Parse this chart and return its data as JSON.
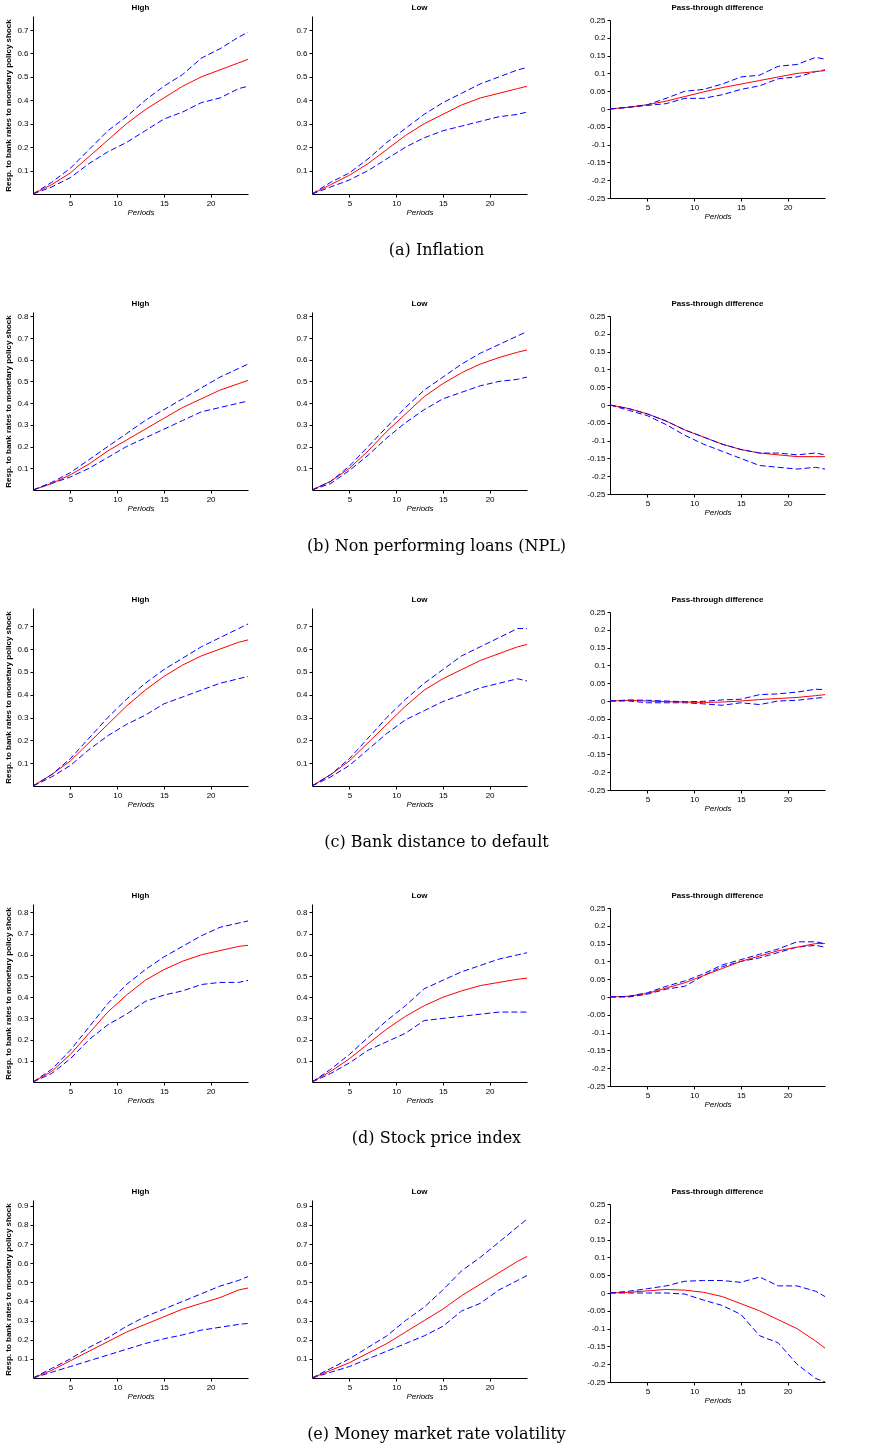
{
  "chart_data": [
    {
      "type": "line",
      "title": "High",
      "xlabel": "Periods",
      "ylabel": "Resp. to bank rates to monetary policy shock",
      "x": [
        1,
        3,
        5,
        7,
        9,
        11,
        13,
        15,
        17,
        19,
        21,
        23,
        24
      ],
      "xlim": [
        1,
        24
      ],
      "xticks": [
        5,
        10,
        15,
        20
      ],
      "ylim": [
        0,
        0.76
      ],
      "yticks": [
        0.1,
        0.2,
        0.3,
        0.4,
        0.5,
        0.6,
        0.7
      ],
      "series": [
        {
          "color": "#0000ff",
          "line_style": "dashed",
          "values": [
            0,
            0.03,
            0.07,
            0.13,
            0.18,
            0.22,
            0.27,
            0.32,
            0.35,
            0.39,
            0.41,
            0.45,
            0.46
          ]
        },
        {
          "color": "#ff0000",
          "line_style": "solid",
          "values": [
            0,
            0.04,
            0.09,
            0.16,
            0.23,
            0.3,
            0.36,
            0.41,
            0.46,
            0.5,
            0.53,
            0.56,
            0.575
          ]
        },
        {
          "color": "#0000ff",
          "line_style": "dashed",
          "values": [
            0,
            0.05,
            0.11,
            0.19,
            0.27,
            0.33,
            0.4,
            0.46,
            0.51,
            0.58,
            0.62,
            0.67,
            0.69
          ]
        }
      ]
    },
    {
      "type": "line",
      "title": "Low",
      "xlabel": "Periods",
      "x": [
        1,
        3,
        5,
        7,
        9,
        11,
        13,
        15,
        17,
        19,
        21,
        23,
        24
      ],
      "xlim": [
        1,
        24
      ],
      "xticks": [
        5,
        10,
        15,
        20
      ],
      "ylim": [
        0,
        0.76
      ],
      "yticks": [
        0.1,
        0.2,
        0.3,
        0.4,
        0.5,
        0.6,
        0.7
      ],
      "annotations": [
        "(a) Inflation"
      ],
      "series": [
        {
          "color": "#0000ff",
          "line_style": "dashed",
          "values": [
            0,
            0.03,
            0.06,
            0.1,
            0.15,
            0.2,
            0.24,
            0.27,
            0.29,
            0.31,
            0.33,
            0.34,
            0.35
          ]
        },
        {
          "color": "#ff0000",
          "line_style": "solid",
          "values": [
            0,
            0.04,
            0.08,
            0.13,
            0.19,
            0.25,
            0.3,
            0.34,
            0.38,
            0.41,
            0.43,
            0.45,
            0.46
          ]
        },
        {
          "color": "#0000ff",
          "line_style": "dashed",
          "values": [
            0,
            0.05,
            0.09,
            0.15,
            0.22,
            0.28,
            0.34,
            0.39,
            0.43,
            0.47,
            0.5,
            0.53,
            0.54
          ]
        }
      ]
    },
    {
      "type": "line",
      "title": "Pass-through difference",
      "xlabel": "Periods",
      "x": [
        1,
        3,
        5,
        7,
        9,
        11,
        13,
        15,
        17,
        19,
        21,
        23,
        24
      ],
      "xlim": [
        1,
        24
      ],
      "xticks": [
        5,
        10,
        15,
        20
      ],
      "ylim": [
        -0.25,
        0.25
      ],
      "yticks": [
        -0.25,
        -0.2,
        -0.15,
        -0.1,
        -0.05,
        0,
        0.05,
        0.1,
        0.15,
        0.2,
        0.25
      ],
      "series": [
        {
          "color": "#0000ff",
          "line_style": "dashed",
          "values": [
            0,
            0.005,
            0.01,
            0.015,
            0.03,
            0.03,
            0.04,
            0.055,
            0.065,
            0.085,
            0.09,
            0.105,
            0.11
          ]
        },
        {
          "color": "#ff0000",
          "line_style": "solid",
          "values": [
            0,
            0.005,
            0.012,
            0.022,
            0.035,
            0.048,
            0.06,
            0.07,
            0.08,
            0.09,
            0.1,
            0.105,
            0.108
          ]
        },
        {
          "color": "#0000ff",
          "line_style": "dashed",
          "values": [
            0,
            0.005,
            0.012,
            0.03,
            0.05,
            0.055,
            0.07,
            0.09,
            0.095,
            0.12,
            0.125,
            0.145,
            0.14
          ]
        }
      ]
    },
    {
      "type": "line",
      "title": "High",
      "xlabel": "Periods",
      "ylabel": "Resp. to bank rates to monetary policy shock",
      "x": [
        1,
        3,
        5,
        7,
        9,
        11,
        13,
        15,
        17,
        19,
        21,
        23,
        24
      ],
      "xlim": [
        1,
        24
      ],
      "xticks": [
        5,
        10,
        15,
        20
      ],
      "ylim": [
        0,
        0.82
      ],
      "yticks": [
        0.1,
        0.2,
        0.3,
        0.4,
        0.5,
        0.6,
        0.7,
        0.8
      ],
      "series": [
        {
          "color": "#0000ff",
          "line_style": "dashed",
          "values": [
            0,
            0.03,
            0.06,
            0.1,
            0.15,
            0.2,
            0.24,
            0.28,
            0.32,
            0.36,
            0.38,
            0.4,
            0.41
          ]
        },
        {
          "color": "#ff0000",
          "line_style": "solid",
          "values": [
            0,
            0.03,
            0.07,
            0.12,
            0.18,
            0.23,
            0.28,
            0.33,
            0.38,
            0.42,
            0.46,
            0.49,
            0.505
          ]
        },
        {
          "color": "#0000ff",
          "line_style": "dashed",
          "values": [
            0,
            0.035,
            0.08,
            0.14,
            0.2,
            0.26,
            0.32,
            0.37,
            0.42,
            0.47,
            0.52,
            0.56,
            0.58
          ]
        }
      ]
    },
    {
      "type": "line",
      "title": "Low",
      "xlabel": "Periods",
      "x": [
        1,
        3,
        5,
        7,
        9,
        11,
        13,
        15,
        17,
        19,
        21,
        23,
        24
      ],
      "xlim": [
        1,
        24
      ],
      "xticks": [
        5,
        10,
        15,
        20
      ],
      "ylim": [
        0,
        0.82
      ],
      "yticks": [
        0.1,
        0.2,
        0.3,
        0.4,
        0.5,
        0.6,
        0.7,
        0.8
      ],
      "annotations": [
        "(b) Non performing loans (NPL)"
      ],
      "series": [
        {
          "color": "#0000ff",
          "line_style": "dashed",
          "values": [
            0,
            0.03,
            0.09,
            0.16,
            0.24,
            0.31,
            0.37,
            0.42,
            0.45,
            0.48,
            0.5,
            0.51,
            0.52
          ]
        },
        {
          "color": "#ff0000",
          "line_style": "solid",
          "values": [
            0,
            0.04,
            0.1,
            0.18,
            0.27,
            0.35,
            0.43,
            0.49,
            0.54,
            0.58,
            0.61,
            0.635,
            0.645
          ]
        },
        {
          "color": "#0000ff",
          "line_style": "dashed",
          "values": [
            0,
            0.04,
            0.11,
            0.2,
            0.29,
            0.38,
            0.46,
            0.52,
            0.58,
            0.63,
            0.67,
            0.71,
            0.73
          ]
        }
      ]
    },
    {
      "type": "line",
      "title": "Pass-through difference",
      "xlabel": "Periods",
      "x": [
        1,
        3,
        5,
        7,
        9,
        11,
        13,
        15,
        17,
        19,
        21,
        23,
        24
      ],
      "xlim": [
        1,
        24
      ],
      "xticks": [
        5,
        10,
        15,
        20
      ],
      "ylim": [
        -0.25,
        0.25
      ],
      "yticks": [
        -0.25,
        -0.2,
        -0.15,
        -0.1,
        -0.05,
        0,
        0.05,
        0.1,
        0.15,
        0.2,
        0.25
      ],
      "series": [
        {
          "color": "#0000ff",
          "line_style": "dashed",
          "values": [
            0,
            -0.015,
            -0.03,
            -0.055,
            -0.085,
            -0.11,
            -0.13,
            -0.15,
            -0.17,
            -0.175,
            -0.18,
            -0.175,
            -0.18
          ]
        },
        {
          "color": "#ff0000",
          "line_style": "solid",
          "values": [
            0,
            -0.01,
            -0.025,
            -0.045,
            -0.07,
            -0.09,
            -0.11,
            -0.125,
            -0.135,
            -0.14,
            -0.145,
            -0.145,
            -0.145
          ]
        },
        {
          "color": "#0000ff",
          "line_style": "dashed",
          "values": [
            0,
            -0.01,
            -0.025,
            -0.045,
            -0.07,
            -0.09,
            -0.11,
            -0.125,
            -0.135,
            -0.135,
            -0.14,
            -0.135,
            -0.14
          ]
        }
      ]
    },
    {
      "type": "line",
      "title": "High",
      "xlabel": "Periods",
      "ylabel": "Resp. to bank rates to monetary policy shock",
      "x": [
        1,
        3,
        5,
        7,
        9,
        11,
        13,
        15,
        17,
        19,
        21,
        23,
        24
      ],
      "xlim": [
        1,
        24
      ],
      "xticks": [
        5,
        10,
        15,
        20
      ],
      "ylim": [
        0,
        0.78
      ],
      "yticks": [
        0.1,
        0.2,
        0.3,
        0.4,
        0.5,
        0.6,
        0.7
      ],
      "series": [
        {
          "color": "#0000ff",
          "line_style": "dashed",
          "values": [
            0,
            0.04,
            0.09,
            0.16,
            0.22,
            0.27,
            0.31,
            0.36,
            0.39,
            0.42,
            0.45,
            0.47,
            0.48
          ]
        },
        {
          "color": "#ff0000",
          "line_style": "solid",
          "values": [
            0,
            0.05,
            0.11,
            0.19,
            0.27,
            0.35,
            0.42,
            0.48,
            0.53,
            0.57,
            0.6,
            0.63,
            0.64
          ]
        },
        {
          "color": "#0000ff",
          "line_style": "dashed",
          "values": [
            0,
            0.05,
            0.12,
            0.21,
            0.3,
            0.38,
            0.45,
            0.51,
            0.56,
            0.61,
            0.65,
            0.69,
            0.71
          ]
        }
      ]
    },
    {
      "type": "line",
      "title": "Low",
      "xlabel": "Periods",
      "x": [
        1,
        3,
        5,
        7,
        9,
        11,
        13,
        15,
        17,
        19,
        21,
        23,
        24
      ],
      "xlim": [
        1,
        24
      ],
      "xticks": [
        5,
        10,
        15,
        20
      ],
      "ylim": [
        0,
        0.78
      ],
      "yticks": [
        0.1,
        0.2,
        0.3,
        0.4,
        0.5,
        0.6,
        0.7
      ],
      "annotations": [
        "(c) Bank distance to default"
      ],
      "series": [
        {
          "color": "#0000ff",
          "line_style": "dashed",
          "values": [
            0,
            0.04,
            0.09,
            0.16,
            0.23,
            0.29,
            0.33,
            0.37,
            0.4,
            0.43,
            0.45,
            0.47,
            0.46
          ]
        },
        {
          "color": "#ff0000",
          "line_style": "solid",
          "values": [
            0,
            0.05,
            0.11,
            0.19,
            0.27,
            0.35,
            0.42,
            0.47,
            0.51,
            0.55,
            0.58,
            0.61,
            0.62
          ]
        },
        {
          "color": "#0000ff",
          "line_style": "dashed",
          "values": [
            0,
            0.05,
            0.12,
            0.21,
            0.3,
            0.38,
            0.45,
            0.51,
            0.57,
            0.61,
            0.65,
            0.69,
            0.69
          ]
        }
      ]
    },
    {
      "type": "line",
      "title": "Pass-through difference",
      "xlabel": "Periods",
      "x": [
        1,
        3,
        5,
        7,
        9,
        11,
        13,
        15,
        17,
        19,
        21,
        23,
        24
      ],
      "xlim": [
        1,
        24
      ],
      "xticks": [
        5,
        10,
        15,
        20
      ],
      "ylim": [
        -0.25,
        0.25
      ],
      "yticks": [
        -0.25,
        -0.2,
        -0.15,
        -0.1,
        -0.05,
        0,
        0.05,
        0.1,
        0.15,
        0.2,
        0.25
      ],
      "series": [
        {
          "color": "#0000ff",
          "line_style": "dashed",
          "values": [
            0,
            0,
            -0.005,
            -0.005,
            -0.005,
            -0.008,
            -0.012,
            -0.005,
            -0.01,
            0,
            0.002,
            0.008,
            0.01
          ]
        },
        {
          "color": "#ff0000",
          "line_style": "solid",
          "values": [
            0,
            0.002,
            0,
            -0.002,
            -0.003,
            -0.004,
            -0.003,
            0,
            0.004,
            0.007,
            0.01,
            0.015,
            0.018
          ]
        },
        {
          "color": "#0000ff",
          "line_style": "dashed",
          "values": [
            0,
            0.003,
            0.002,
            0,
            -0.002,
            -0.001,
            0.003,
            0.005,
            0.018,
            0.02,
            0.025,
            0.033,
            0.032
          ]
        }
      ]
    },
    {
      "type": "line",
      "title": "High",
      "xlabel": "Periods",
      "ylabel": "Resp. to bank rates to monetary policy shock",
      "x": [
        1,
        3,
        5,
        7,
        9,
        11,
        13,
        15,
        17,
        19,
        21,
        23,
        24
      ],
      "xlim": [
        1,
        24
      ],
      "xticks": [
        5,
        10,
        15,
        20
      ],
      "ylim": [
        0,
        0.84
      ],
      "yticks": [
        0.1,
        0.2,
        0.3,
        0.4,
        0.5,
        0.6,
        0.7,
        0.8
      ],
      "series": [
        {
          "color": "#0000ff",
          "line_style": "dashed",
          "values": [
            0,
            0.04,
            0.11,
            0.2,
            0.27,
            0.32,
            0.38,
            0.41,
            0.43,
            0.46,
            0.47,
            0.47,
            0.48
          ]
        },
        {
          "color": "#ff0000",
          "line_style": "solid",
          "values": [
            0,
            0.05,
            0.13,
            0.23,
            0.33,
            0.41,
            0.48,
            0.53,
            0.57,
            0.6,
            0.62,
            0.64,
            0.645
          ]
        },
        {
          "color": "#0000ff",
          "line_style": "dashed",
          "values": [
            0,
            0.06,
            0.15,
            0.26,
            0.37,
            0.46,
            0.53,
            0.59,
            0.64,
            0.69,
            0.73,
            0.75,
            0.76
          ]
        }
      ]
    },
    {
      "type": "line",
      "title": "Low",
      "xlabel": "Periods",
      "x": [
        1,
        3,
        5,
        7,
        9,
        11,
        13,
        15,
        17,
        19,
        21,
        23,
        24
      ],
      "xlim": [
        1,
        24
      ],
      "xticks": [
        5,
        10,
        15,
        20
      ],
      "ylim": [
        0,
        0.84
      ],
      "yticks": [
        0.1,
        0.2,
        0.3,
        0.4,
        0.5,
        0.6,
        0.7,
        0.8
      ],
      "annotations": [
        "(d) Stock price index"
      ],
      "series": [
        {
          "color": "#0000ff",
          "line_style": "dashed",
          "values": [
            0,
            0.04,
            0.09,
            0.15,
            0.19,
            0.23,
            0.29,
            0.3,
            0.31,
            0.32,
            0.33,
            0.33,
            0.33
          ]
        },
        {
          "color": "#ff0000",
          "line_style": "solid",
          "values": [
            0,
            0.05,
            0.11,
            0.18,
            0.25,
            0.31,
            0.36,
            0.4,
            0.43,
            0.455,
            0.47,
            0.485,
            0.49
          ]
        },
        {
          "color": "#0000ff",
          "line_style": "dashed",
          "values": [
            0,
            0.06,
            0.13,
            0.21,
            0.29,
            0.36,
            0.44,
            0.48,
            0.52,
            0.55,
            0.58,
            0.6,
            0.61
          ]
        }
      ]
    },
    {
      "type": "line",
      "title": "Pass-through difference",
      "xlabel": "Periods",
      "x": [
        1,
        3,
        5,
        7,
        9,
        11,
        13,
        15,
        17,
        19,
        21,
        23,
        24
      ],
      "xlim": [
        1,
        24
      ],
      "xticks": [
        5,
        10,
        15,
        20
      ],
      "ylim": [
        -0.25,
        0.25
      ],
      "yticks": [
        -0.25,
        -0.2,
        -0.15,
        -0.1,
        -0.05,
        0,
        0.05,
        0.1,
        0.15,
        0.2,
        0.25
      ],
      "series": [
        {
          "color": "#0000ff",
          "line_style": "dashed",
          "values": [
            0,
            0,
            0.008,
            0.022,
            0.03,
            0.06,
            0.085,
            0.1,
            0.11,
            0.125,
            0.14,
            0.145,
            0.14
          ]
        },
        {
          "color": "#ff0000",
          "line_style": "solid",
          "values": [
            0,
            0.002,
            0.01,
            0.025,
            0.04,
            0.06,
            0.08,
            0.1,
            0.115,
            0.13,
            0.14,
            0.15,
            0.15
          ]
        },
        {
          "color": "#0000ff",
          "line_style": "dashed",
          "values": [
            0,
            0.002,
            0.012,
            0.03,
            0.045,
            0.065,
            0.09,
            0.105,
            0.12,
            0.135,
            0.155,
            0.155,
            0.15
          ]
        }
      ]
    },
    {
      "type": "line",
      "title": "High",
      "xlabel": "Periods",
      "ylabel": "Resp. to bank rates to monetary policy shock",
      "x": [
        1,
        3,
        5,
        7,
        9,
        11,
        13,
        15,
        17,
        19,
        21,
        23,
        24
      ],
      "xlim": [
        1,
        24
      ],
      "xticks": [
        5,
        10,
        15,
        20
      ],
      "ylim": [
        0,
        0.93
      ],
      "yticks": [
        0.1,
        0.2,
        0.3,
        0.4,
        0.5,
        0.6,
        0.7,
        0.8,
        0.9
      ],
      "series": [
        {
          "color": "#0000ff",
          "line_style": "dashed",
          "values": [
            0,
            0.03,
            0.06,
            0.09,
            0.12,
            0.15,
            0.18,
            0.205,
            0.225,
            0.25,
            0.265,
            0.28,
            0.285
          ]
        },
        {
          "color": "#ff0000",
          "line_style": "solid",
          "values": [
            0,
            0.04,
            0.09,
            0.14,
            0.19,
            0.24,
            0.28,
            0.32,
            0.36,
            0.39,
            0.42,
            0.46,
            0.47
          ]
        },
        {
          "color": "#0000ff",
          "line_style": "dashed",
          "values": [
            0,
            0.05,
            0.1,
            0.16,
            0.21,
            0.27,
            0.32,
            0.36,
            0.4,
            0.44,
            0.48,
            0.51,
            0.53
          ]
        }
      ]
    },
    {
      "type": "line",
      "title": "Low",
      "xlabel": "Periods",
      "x": [
        1,
        3,
        5,
        7,
        9,
        11,
        13,
        15,
        17,
        19,
        21,
        23,
        24
      ],
      "xlim": [
        1,
        24
      ],
      "xticks": [
        5,
        10,
        15,
        20
      ],
      "ylim": [
        0,
        0.93
      ],
      "yticks": [
        0.1,
        0.2,
        0.3,
        0.4,
        0.5,
        0.6,
        0.7,
        0.8,
        0.9
      ],
      "annotations": [
        "(e) Money market rate volatility"
      ],
      "series": [
        {
          "color": "#0000ff",
          "line_style": "dashed",
          "values": [
            0,
            0.03,
            0.06,
            0.1,
            0.14,
            0.18,
            0.22,
            0.27,
            0.35,
            0.39,
            0.46,
            0.51,
            0.535
          ]
        },
        {
          "color": "#ff0000",
          "line_style": "solid",
          "values": [
            0,
            0.04,
            0.08,
            0.13,
            0.18,
            0.24,
            0.3,
            0.36,
            0.43,
            0.49,
            0.55,
            0.61,
            0.635
          ]
        },
        {
          "color": "#0000ff",
          "line_style": "dashed",
          "values": [
            0,
            0.05,
            0.1,
            0.16,
            0.22,
            0.3,
            0.37,
            0.46,
            0.56,
            0.63,
            0.71,
            0.79,
            0.83
          ]
        }
      ]
    },
    {
      "type": "line",
      "title": "Pass-through difference",
      "xlabel": "Periods",
      "x": [
        1,
        3,
        5,
        7,
        9,
        11,
        13,
        15,
        17,
        19,
        21,
        23,
        24
      ],
      "xlim": [
        1,
        24
      ],
      "xticks": [
        5,
        10,
        15,
        20
      ],
      "ylim": [
        -0.25,
        0.25
      ],
      "yticks": [
        -0.25,
        -0.2,
        -0.15,
        -0.1,
        -0.05,
        0,
        0.05,
        0.1,
        0.15,
        0.2,
        0.25
      ],
      "series": [
        {
          "color": "#0000ff",
          "line_style": "dashed",
          "values": [
            0,
            0,
            0,
            0,
            -0.003,
            -0.02,
            -0.035,
            -0.06,
            -0.12,
            -0.14,
            -0.2,
            -0.24,
            -0.25
          ]
        },
        {
          "color": "#ff0000",
          "line_style": "solid",
          "values": [
            0,
            0.002,
            0.006,
            0.01,
            0.008,
            0.002,
            -0.01,
            -0.03,
            -0.05,
            -0.075,
            -0.1,
            -0.135,
            -0.155
          ]
        },
        {
          "color": "#0000ff",
          "line_style": "dashed",
          "values": [
            0,
            0.005,
            0.012,
            0.02,
            0.033,
            0.035,
            0.035,
            0.03,
            0.045,
            0.02,
            0.02,
            0.005,
            -0.01
          ]
        }
      ]
    }
  ]
}
